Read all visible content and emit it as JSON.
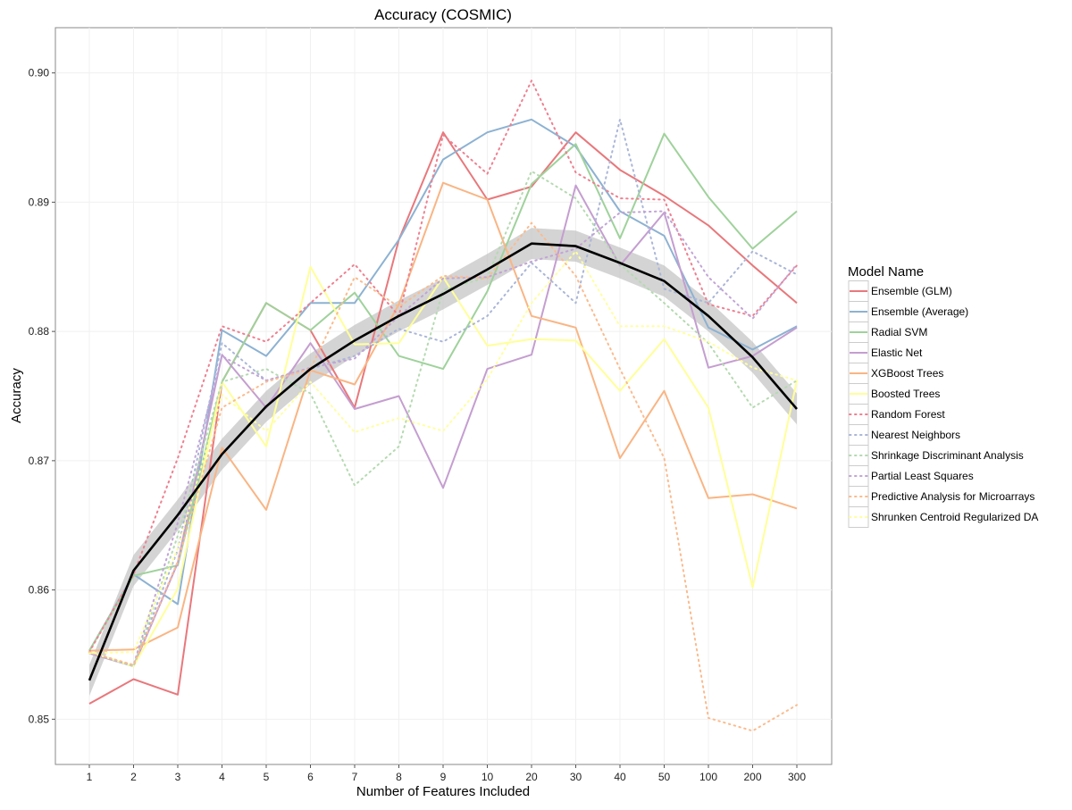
{
  "chart_data": {
    "type": "line",
    "title": "Accuracy (COSMIC)",
    "xlabel": "Number of Features Included",
    "ylabel": "Accuracy",
    "categories": [
      "1",
      "2",
      "3",
      "4",
      "5",
      "6",
      "7",
      "8",
      "9",
      "10",
      "20",
      "30",
      "40",
      "50",
      "100",
      "200",
      "300"
    ],
    "ylim": [
      0.8465,
      0.9035
    ],
    "yticks": [
      0.85,
      0.86,
      0.87,
      0.88,
      0.89,
      0.9
    ],
    "ytick_labels": [
      "0.85",
      "0.86",
      "0.87",
      "0.88",
      "0.89",
      "0.90"
    ],
    "grid": true,
    "legend_title": "Model Name",
    "legend_position": "right",
    "series": [
      {
        "name": "Ensemble (GLM)",
        "color": "#e8787c",
        "style": "solid",
        "values": [
          0.8512,
          0.8531,
          0.8519,
          0.8761,
          0.8822,
          0.8801,
          0.8741,
          0.8871,
          0.8954,
          0.8902,
          0.8912,
          0.8954,
          0.8925,
          0.8905,
          0.8882,
          0.8851,
          0.8822
        ]
      },
      {
        "name": "Ensemble (Average)",
        "color": "#8db2d2",
        "style": "solid",
        "values": [
          0.8553,
          0.8612,
          0.8589,
          0.8801,
          0.8781,
          0.8822,
          0.8822,
          0.8871,
          0.8933,
          0.8954,
          0.8964,
          0.8943,
          0.8893,
          0.8874,
          0.8803,
          0.8786,
          0.8804
        ]
      },
      {
        "name": "Radial SVM",
        "color": "#9fd29b",
        "style": "solid",
        "values": [
          0.8553,
          0.8611,
          0.8619,
          0.8761,
          0.8822,
          0.8801,
          0.883,
          0.8781,
          0.8771,
          0.8831,
          0.8914,
          0.8945,
          0.8872,
          0.8953,
          0.8904,
          0.8864,
          0.8893
        ]
      },
      {
        "name": "Elastic Net",
        "color": "#c49ed0",
        "style": "solid",
        "values": [
          0.8551,
          0.8541,
          0.8621,
          0.8782,
          0.8741,
          0.8791,
          0.874,
          0.875,
          0.8679,
          0.8771,
          0.8782,
          0.8913,
          0.8851,
          0.8892,
          0.8772,
          0.8781,
          0.8803
        ]
      },
      {
        "name": "XGBoost Trees",
        "color": "#f9b584",
        "style": "solid",
        "values": [
          0.8553,
          0.8554,
          0.8571,
          0.871,
          0.8662,
          0.877,
          0.8759,
          0.8821,
          0.8915,
          0.8902,
          0.8812,
          0.8803,
          0.8702,
          0.8754,
          0.8671,
          0.8674,
          0.8663
        ]
      },
      {
        "name": "Boosted Trees",
        "color": "#ffff9a",
        "style": "solid",
        "values": [
          0.8552,
          0.8541,
          0.8601,
          0.8761,
          0.8711,
          0.885,
          0.879,
          0.8791,
          0.8842,
          0.8789,
          0.8794,
          0.8793,
          0.8754,
          0.8794,
          0.8741,
          0.8602,
          0.8762
        ]
      },
      {
        "name": "Random Forest",
        "color": "#ee8090",
        "style": "dotted",
        "values": [
          0.8552,
          0.8612,
          0.8702,
          0.8804,
          0.8792,
          0.8822,
          0.8852,
          0.8812,
          0.8952,
          0.8922,
          0.8994,
          0.8923,
          0.8903,
          0.8902,
          0.8821,
          0.8812,
          0.8851
        ]
      },
      {
        "name": "Nearest Neighbors",
        "color": "#aab6d8",
        "style": "dotted",
        "values": [
          0.8551,
          0.8541,
          0.8631,
          0.8791,
          0.8762,
          0.8771,
          0.8781,
          0.8802,
          0.8792,
          0.8812,
          0.8853,
          0.8822,
          0.8964,
          0.8833,
          0.8822,
          0.8862,
          0.8844
        ]
      },
      {
        "name": "Shrinkage Discriminant Analysis",
        "color": "#b4dab0",
        "style": "dotted",
        "values": [
          0.8552,
          0.8541,
          0.8642,
          0.8761,
          0.8771,
          0.8752,
          0.8681,
          0.8711,
          0.8832,
          0.8842,
          0.8924,
          0.8903,
          0.8852,
          0.8822,
          0.8791,
          0.8741,
          0.8762
        ]
      },
      {
        "name": "Partial Least Squares",
        "color": "#c2a4d6",
        "style": "dotted",
        "values": [
          0.8551,
          0.8542,
          0.8652,
          0.8781,
          0.8762,
          0.8772,
          0.8779,
          0.8812,
          0.8841,
          0.8842,
          0.8854,
          0.8864,
          0.8892,
          0.8893,
          0.8842,
          0.881,
          0.8852
        ]
      },
      {
        "name": "Predictive Analysis for Microarrays",
        "color": "#fbbb8e",
        "style": "dotted",
        "values": [
          0.8552,
          0.8542,
          0.8622,
          0.8741,
          0.8761,
          0.8771,
          0.8842,
          0.8819,
          0.8843,
          0.8841,
          0.8884,
          0.8843,
          0.8771,
          0.8702,
          0.8501,
          0.8491,
          0.8511
        ]
      },
      {
        "name": "Shrunken Centroid Regularized DA",
        "color": "#ffff9f",
        "style": "dotted",
        "values": [
          0.8551,
          0.8552,
          0.8632,
          0.8751,
          0.8723,
          0.8761,
          0.8722,
          0.8733,
          0.8723,
          0.8763,
          0.8822,
          0.8862,
          0.8804,
          0.8804,
          0.8792,
          0.8772,
          0.8762
        ]
      }
    ],
    "smooth": {
      "color": "#000000",
      "values": [
        0.853,
        0.8615,
        0.8658,
        0.8705,
        0.8742,
        0.8771,
        0.8793,
        0.8812,
        0.8829,
        0.8848,
        0.8868,
        0.8866,
        0.8853,
        0.8839,
        0.8812,
        0.878,
        0.874
      ],
      "band": 0.0012
    }
  }
}
